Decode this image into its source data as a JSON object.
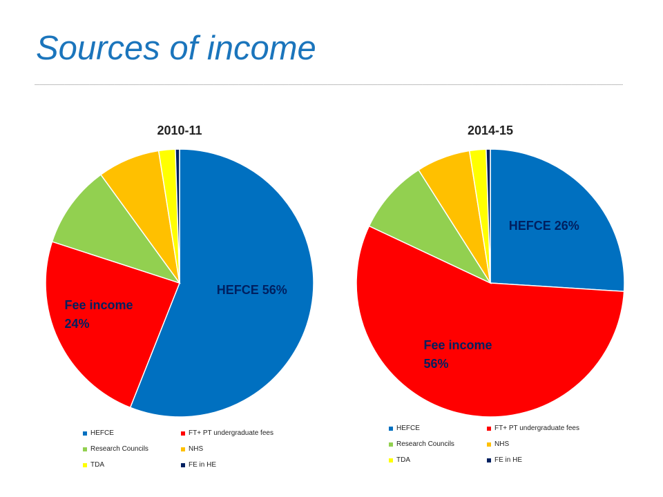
{
  "page": {
    "title": "Sources of income",
    "rule": "______________________________________________________________________________________________________________________________________________________"
  },
  "chart_data": [
    {
      "type": "pie",
      "title": "2010-11",
      "labels": [
        "HEFCE",
        "FT+ PT undergraduate fees",
        "Research Councils",
        "NHS",
        "TDA",
        "FE in HE"
      ],
      "values": [
        56,
        24,
        10,
        7.5,
        2,
        0.5
      ],
      "colors": [
        "#0070c0",
        "#ff0000",
        "#92d050",
        "#ffc000",
        "#ffff00",
        "#002060"
      ],
      "data_labels": [
        {
          "slice": 0,
          "lines": [
            "HEFCE 56%"
          ],
          "color": "#002060"
        },
        {
          "slice": 1,
          "lines": [
            "Fee income",
            "24%"
          ],
          "color": "#002060"
        }
      ],
      "legend_position": "bottom"
    },
    {
      "type": "pie",
      "title": "2014-15",
      "labels": [
        "HEFCE",
        "FT+ PT undergraduate fees",
        "Research Councils",
        "NHS",
        "TDA",
        "FE in HE"
      ],
      "values": [
        26,
        56,
        9,
        6.5,
        2,
        0.5
      ],
      "colors": [
        "#0070c0",
        "#ff0000",
        "#92d050",
        "#ffc000",
        "#ffff00",
        "#002060"
      ],
      "data_labels": [
        {
          "slice": 0,
          "lines": [
            "HEFCE 26%"
          ],
          "color": "#002060"
        },
        {
          "slice": 1,
          "lines": [
            "Fee income",
            "56%"
          ],
          "color": "#002060"
        }
      ],
      "legend_position": "bottom"
    }
  ]
}
